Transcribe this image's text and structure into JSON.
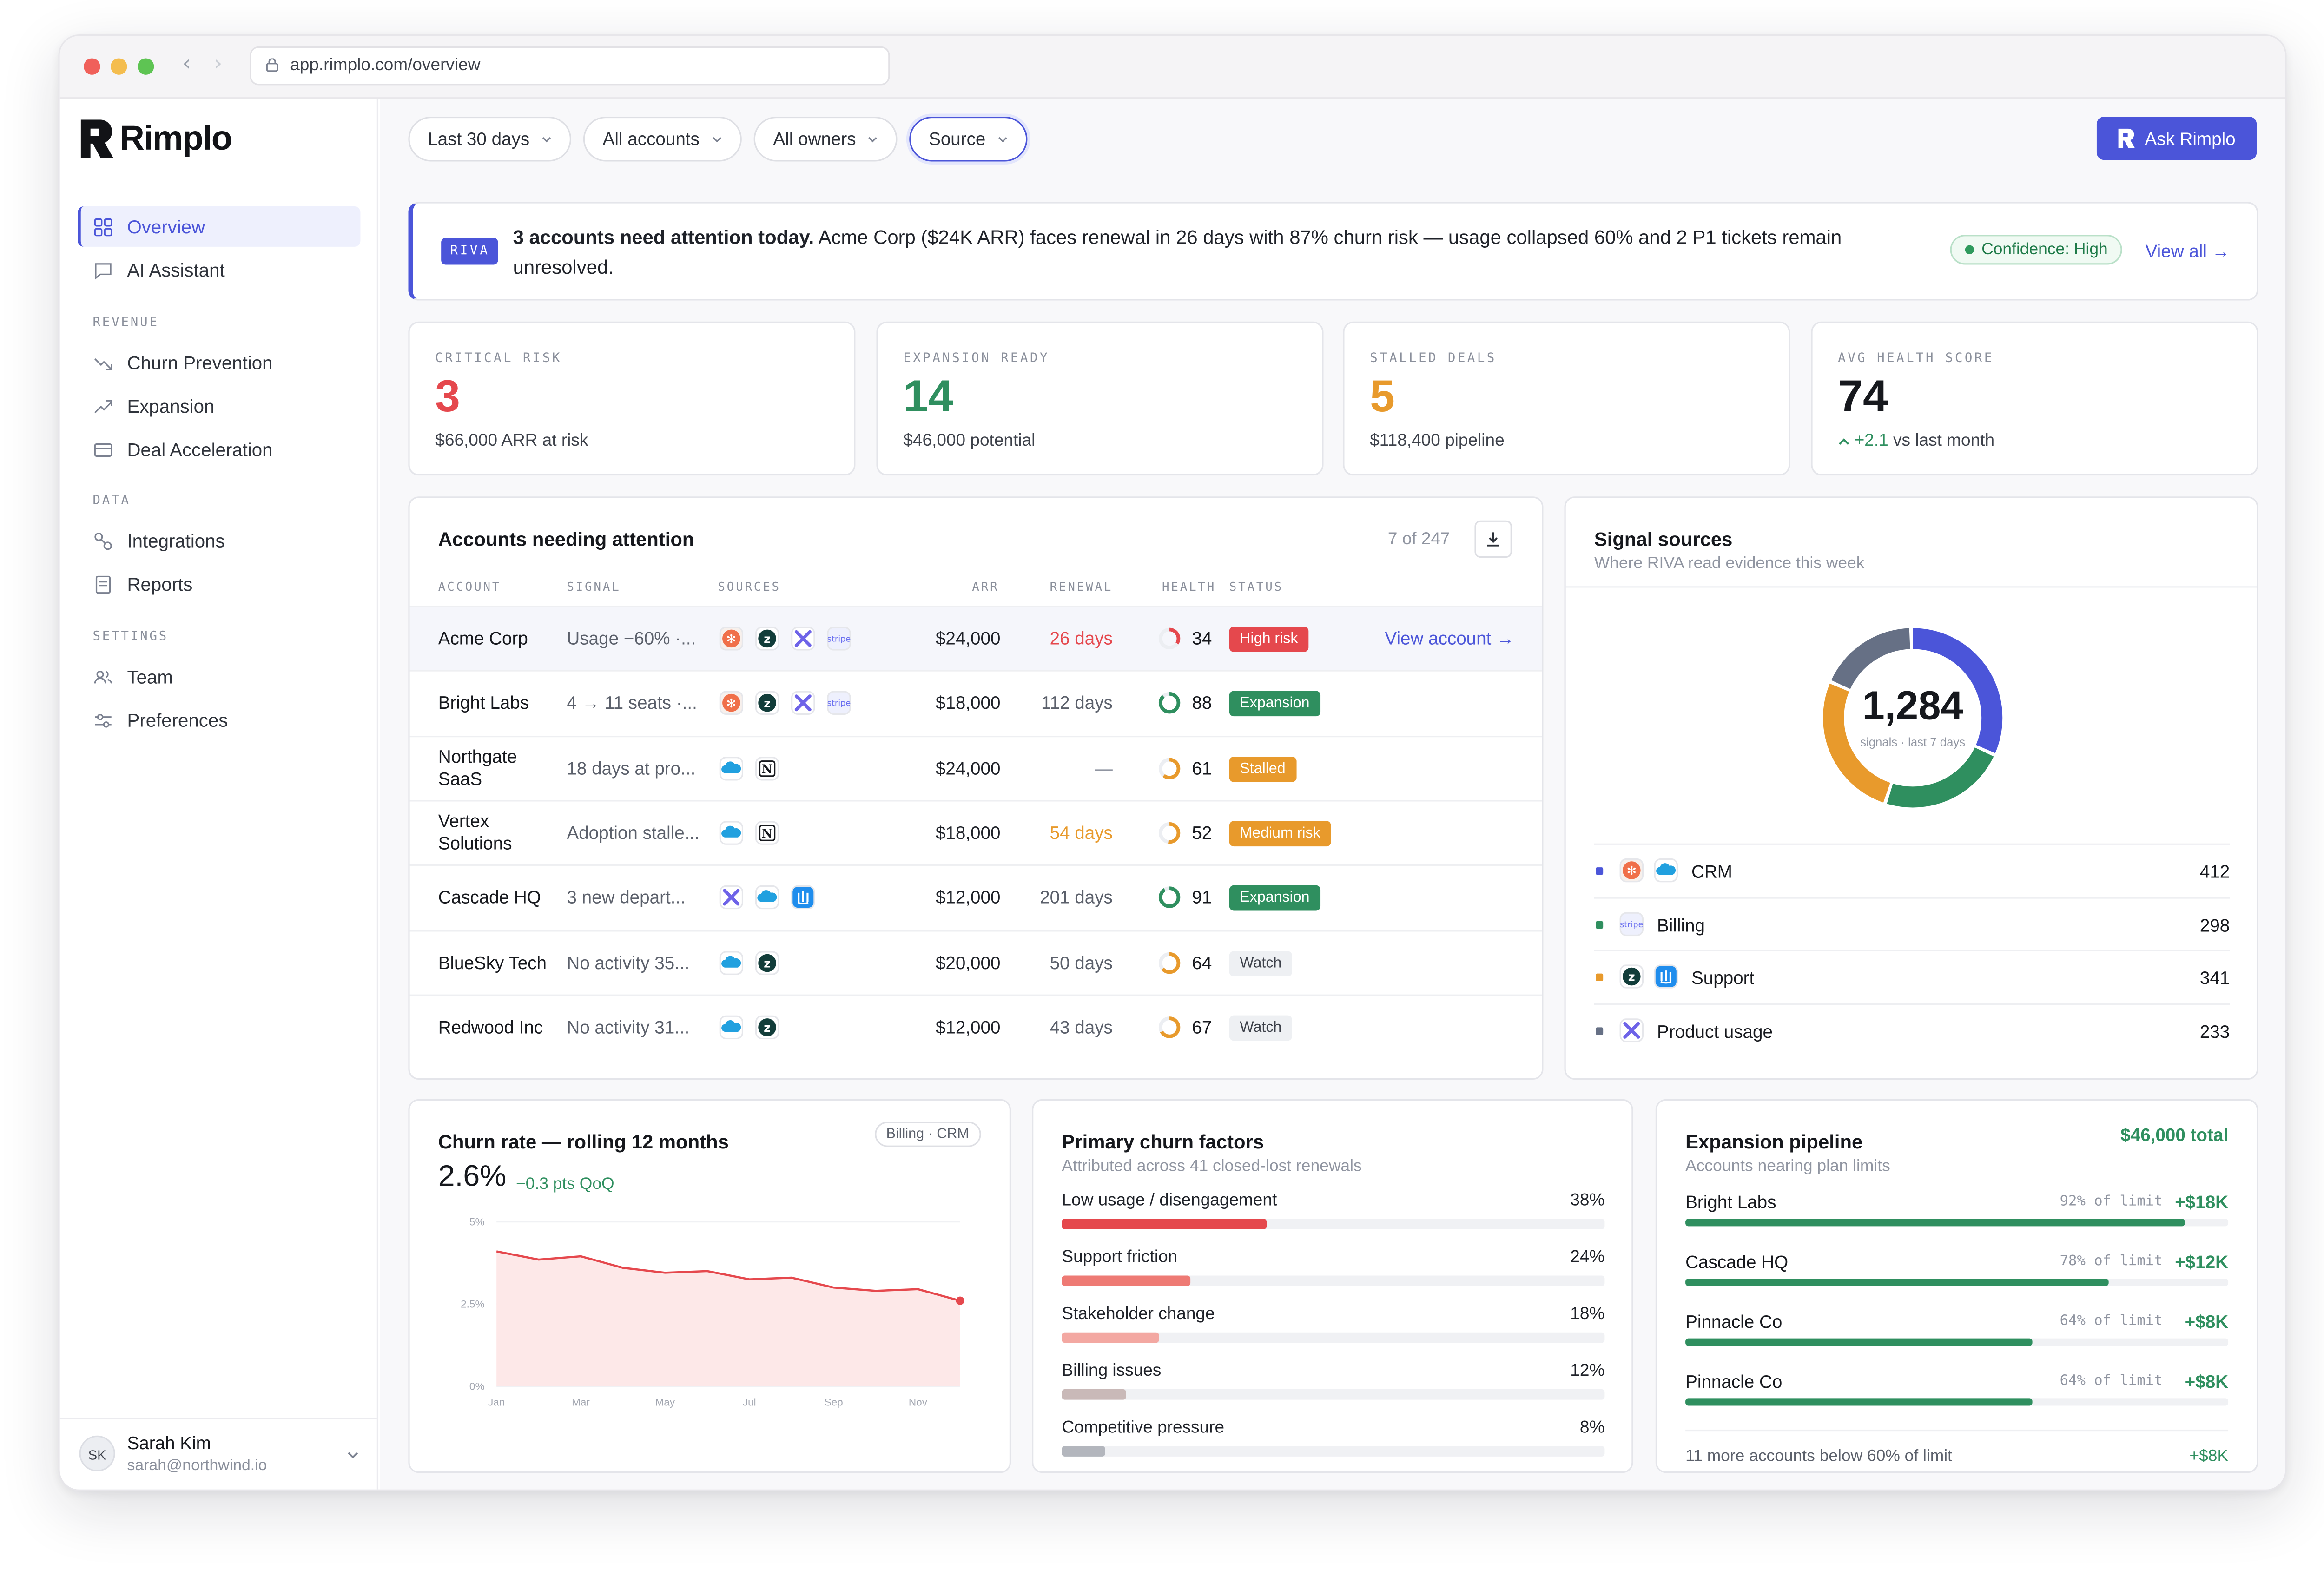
{
  "browser": {
    "url": "app.rimplo.com/overview"
  },
  "app": {
    "name": "Rimplo"
  },
  "sidebar": {
    "top_items": [
      {
        "label": "Overview",
        "icon": "grid-icon"
      },
      {
        "label": "AI Assistant",
        "icon": "chat-icon"
      }
    ],
    "sections": [
      {
        "label": "REVENUE",
        "items": [
          {
            "label": "Churn Prevention",
            "icon": "trend-down-icon"
          },
          {
            "label": "Expansion",
            "icon": "trend-up-icon"
          },
          {
            "label": "Deal Acceleration",
            "icon": "card-icon"
          }
        ]
      },
      {
        "label": "DATA",
        "items": [
          {
            "label": "Integrations",
            "icon": "link-icon"
          },
          {
            "label": "Reports",
            "icon": "doc-icon"
          }
        ]
      },
      {
        "label": "SETTINGS",
        "items": [
          {
            "label": "Team",
            "icon": "team-icon"
          },
          {
            "label": "Preferences",
            "icon": "sliders-icon"
          }
        ]
      }
    ],
    "user": {
      "initials": "SK",
      "name": "Sarah Kim",
      "email": "sarah@northwind.io"
    }
  },
  "filters": [
    {
      "label": "Last 30 days"
    },
    {
      "label": "All accounts"
    },
    {
      "label": "All owners"
    },
    {
      "label": "Source"
    }
  ],
  "ask_button": "Ask Rimplo",
  "banner": {
    "tag": "RIVA",
    "headline": "3 accounts need attention today.",
    "text": " Acme Corp ($24K ARR) faces renewal in 26 days with 87% churn risk — usage collapsed 60% and 2 P1 tickets remain unresolved.",
    "confidence": "Confidence: High",
    "view_all": "View all →"
  },
  "kpis": [
    {
      "label": "CRITICAL RISK",
      "value": "3",
      "sub": "$66,000 ARR at risk",
      "color": "#e5484d"
    },
    {
      "label": "EXPANSION READY",
      "value": "14",
      "sub": "$46,000 potential",
      "color": "#2f8f5f"
    },
    {
      "label": "STALLED DEALS",
      "value": "5",
      "sub": "$118,400 pipeline",
      "color": "#e89a2c"
    },
    {
      "label": "AVG HEALTH SCORE",
      "value": "74",
      "delta": "+2.1",
      "sub": "vs last month",
      "color": "#16181d"
    }
  ],
  "accounts": {
    "title": "Accounts needing attention",
    "count": "7 of 247",
    "columns": [
      "ACCOUNT",
      "SIGNAL",
      "SOURCES",
      "ARR",
      "RENEWAL",
      "HEALTH",
      "STATUS"
    ],
    "view_account": "View account →",
    "rows": [
      {
        "account": "Acme Corp",
        "signal": "Usage −60% ·...",
        "sources": [
          "hubspot",
          "zendesk",
          "product",
          "stripe"
        ],
        "arr": "$24,000",
        "renewal": "26 days",
        "renewal_color": "#e5484d",
        "health": "34",
        "health_color": "#e5484d",
        "health_level": 0.34,
        "status": "High risk",
        "status_color": "#e5484d"
      },
      {
        "account": "Bright Labs",
        "signal": "4 → 11 seats ·...",
        "sources": [
          "hubspot",
          "zendesk",
          "product",
          "stripe"
        ],
        "arr": "$18,000",
        "renewal": "112 days",
        "renewal_color": "#5b606b",
        "health": "88",
        "health_color": "#2f8f5f",
        "health_level": 0.88,
        "status": "Expansion",
        "status_color": "#2f8f5f"
      },
      {
        "account": "Northgate SaaS",
        "signal": "18 days at pro...",
        "sources": [
          "salesforce",
          "notion"
        ],
        "arr": "$24,000",
        "renewal": "—",
        "renewal_color": "#9095a1",
        "health": "61",
        "health_color": "#e89a2c",
        "health_level": 0.61,
        "status": "Stalled",
        "status_color": "#e89a2c"
      },
      {
        "account": "Vertex Solutions",
        "signal": "Adoption stalle...",
        "sources": [
          "salesforce",
          "notion"
        ],
        "arr": "$18,000",
        "renewal": "54 days",
        "renewal_color": "#e89a2c",
        "health": "52",
        "health_color": "#e89a2c",
        "health_level": 0.52,
        "status": "Medium risk",
        "status_color": "#e89a2c"
      },
      {
        "account": "Cascade HQ",
        "signal": "3 new depart...",
        "sources": [
          "product",
          "salesforce",
          "intercom"
        ],
        "arr": "$12,000",
        "renewal": "201 days",
        "renewal_color": "#5b606b",
        "health": "91",
        "health_color": "#2f8f5f",
        "health_level": 0.91,
        "status": "Expansion",
        "status_color": "#2f8f5f"
      },
      {
        "account": "BlueSky Tech",
        "signal": "No activity 35...",
        "sources": [
          "salesforce",
          "zendesk"
        ],
        "arr": "$20,000",
        "renewal": "50 days",
        "renewal_color": "#5b606b",
        "health": "64",
        "health_color": "#e89a2c",
        "health_level": 0.64,
        "status": "Watch",
        "status_color": "watch"
      },
      {
        "account": "Redwood Inc",
        "signal": "No activity 31...",
        "sources": [
          "salesforce",
          "zendesk"
        ],
        "arr": "$12,000",
        "renewal": "43 days",
        "renewal_color": "#5b606b",
        "health": "67",
        "health_color": "#e89a2c",
        "health_level": 0.67,
        "status": "Watch",
        "status_color": "watch"
      }
    ]
  },
  "signal_sources": {
    "title": "Signal sources",
    "subtitle": "Where RIVA read evidence this week",
    "total": "1,284",
    "total_label": "signals · last 7 days",
    "items": [
      {
        "label": "CRM",
        "value": 412,
        "color": "#4b55d9",
        "icons": [
          "hubspot",
          "salesforce"
        ]
      },
      {
        "label": "Billing",
        "value": 298,
        "color": "#2f8f5f",
        "icons": [
          "stripe"
        ]
      },
      {
        "label": "Support",
        "value": 341,
        "color": "#e89a2c",
        "icons": [
          "zendesk",
          "intercom"
        ]
      },
      {
        "label": "Product usage",
        "value": 233,
        "color": "#667085",
        "icons": [
          "product"
        ]
      }
    ]
  },
  "churn_rate": {
    "title": "Churn rate — rolling 12 months",
    "tag": "Billing · CRM",
    "value": "2.6%",
    "delta": "−0.3 pts QoQ"
  },
  "chart_data": {
    "type": "area",
    "x": [
      "Jan",
      "Feb",
      "Mar",
      "Apr",
      "May",
      "Jun",
      "Jul",
      "Aug",
      "Sep",
      "Oct",
      "Nov",
      "Dec"
    ],
    "xticks": [
      "Jan",
      "Mar",
      "May",
      "Jul",
      "Sep",
      "Nov"
    ],
    "yticks": [
      "5%",
      "2.5%",
      "0%"
    ],
    "values": [
      4.1,
      3.85,
      3.95,
      3.6,
      3.45,
      3.5,
      3.25,
      3.3,
      3.0,
      2.9,
      2.95,
      2.6
    ],
    "ylim": [
      0,
      5
    ],
    "color": "#e5484d"
  },
  "churn_factors": {
    "title": "Primary churn factors",
    "subtitle": "Attributed across 41 closed-lost renewals",
    "items": [
      {
        "label": "Low usage / disengagement",
        "pct": "38%",
        "value": 38,
        "color": "#e5484d"
      },
      {
        "label": "Support friction",
        "pct": "24%",
        "value": 24,
        "color": "#ee7a74"
      },
      {
        "label": "Stakeholder change",
        "pct": "18%",
        "value": 18,
        "color": "#f3a8a2"
      },
      {
        "label": "Billing issues",
        "pct": "12%",
        "value": 12,
        "color": "#c9b9b8"
      },
      {
        "label": "Competitive pressure",
        "pct": "8%",
        "value": 8,
        "color": "#b3b6bd"
      }
    ]
  },
  "expansion_pipeline": {
    "title": "Expansion pipeline",
    "total": "$46,000 total",
    "subtitle": "Accounts nearing plan limits",
    "items": [
      {
        "name": "Bright Labs",
        "limit": "92% of limit",
        "value": "+$18K",
        "level": 92
      },
      {
        "name": "Cascade HQ",
        "limit": "78% of limit",
        "value": "+$12K",
        "level": 78
      },
      {
        "name": "Pinnacle Co",
        "limit": "64% of limit",
        "value": "+$8K",
        "level": 64
      },
      {
        "name": "Pinnacle Co",
        "limit": "64% of limit",
        "value": "+$8K",
        "level": 64
      }
    ],
    "footer": "11 more accounts below 60% of limit",
    "footer_value": "+$8K"
  }
}
